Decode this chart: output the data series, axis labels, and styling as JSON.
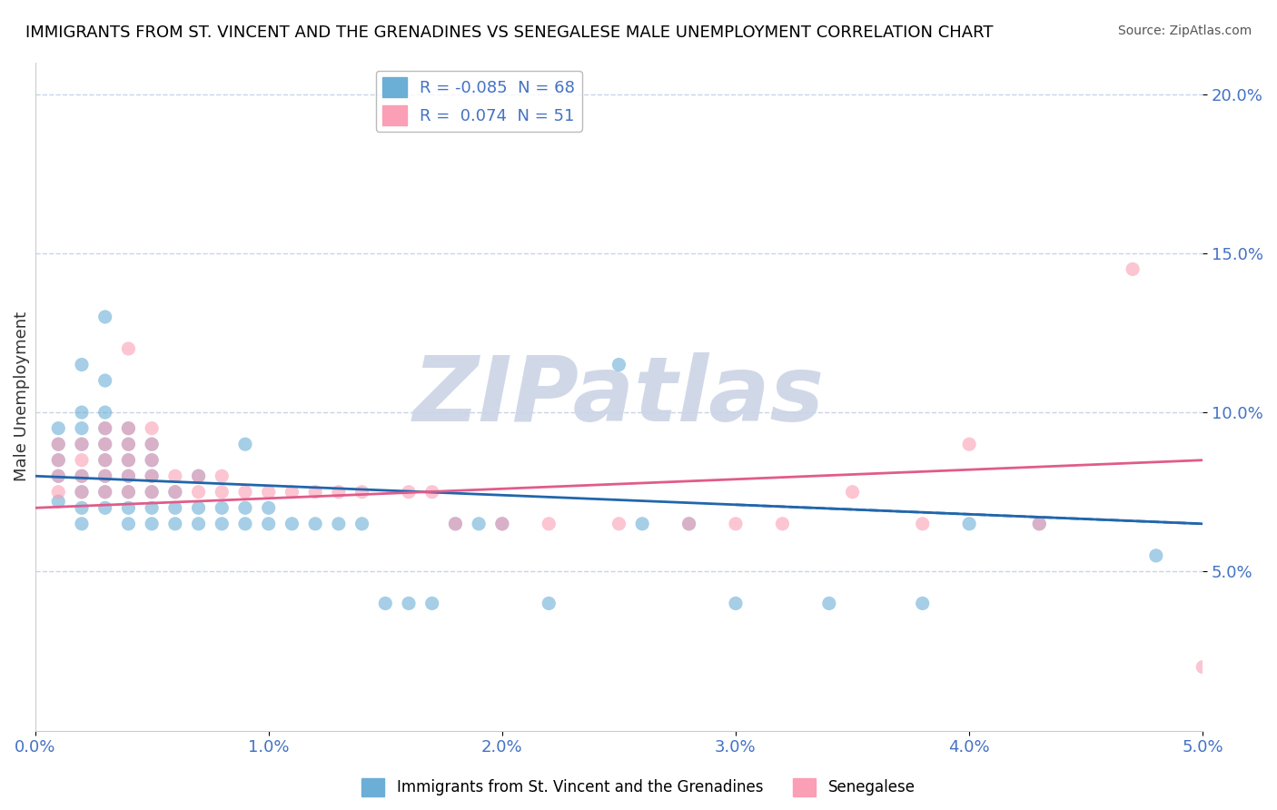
{
  "title": "IMMIGRANTS FROM ST. VINCENT AND THE GRENADINES VS SENEGALESE MALE UNEMPLOYMENT CORRELATION CHART",
  "source": "Source: ZipAtlas.com",
  "xlabel": "",
  "ylabel": "Male Unemployment",
  "x_min": 0.0,
  "x_max": 0.05,
  "y_min": 0.0,
  "y_max": 0.21,
  "y_ticks": [
    0.05,
    0.1,
    0.15,
    0.2
  ],
  "y_tick_labels": [
    "5.0%",
    "10.0%",
    "15.0%",
    "20.0%"
  ],
  "x_ticks": [
    0.0,
    0.01,
    0.02,
    0.03,
    0.04,
    0.05
  ],
  "x_tick_labels": [
    "0.0%",
    "1.0%",
    "2.0%",
    "3.0%",
    "4.0%",
    "5.0%"
  ],
  "blue_label": "Immigrants from St. Vincent and the Grenadines",
  "pink_label": "Senegalese",
  "blue_R": -0.085,
  "blue_N": 68,
  "pink_R": 0.074,
  "pink_N": 51,
  "blue_color": "#6baed6",
  "pink_color": "#fa9fb5",
  "blue_line_color": "#2166ac",
  "pink_line_color": "#e05c8a",
  "watermark": "ZIPatlas",
  "watermark_color": "#d0d8e8",
  "grid_color": "#c8d4e8",
  "blue_x": [
    0.001,
    0.001,
    0.001,
    0.001,
    0.001,
    0.002,
    0.002,
    0.002,
    0.002,
    0.002,
    0.002,
    0.002,
    0.002,
    0.003,
    0.003,
    0.003,
    0.003,
    0.003,
    0.003,
    0.003,
    0.003,
    0.003,
    0.004,
    0.004,
    0.004,
    0.004,
    0.004,
    0.004,
    0.004,
    0.005,
    0.005,
    0.005,
    0.005,
    0.005,
    0.005,
    0.006,
    0.006,
    0.006,
    0.007,
    0.007,
    0.007,
    0.008,
    0.008,
    0.009,
    0.009,
    0.009,
    0.01,
    0.01,
    0.011,
    0.012,
    0.013,
    0.014,
    0.015,
    0.016,
    0.017,
    0.018,
    0.019,
    0.02,
    0.022,
    0.025,
    0.026,
    0.028,
    0.03,
    0.034,
    0.038,
    0.04,
    0.043,
    0.048
  ],
  "blue_y": [
    0.072,
    0.08,
    0.085,
    0.09,
    0.095,
    0.065,
    0.07,
    0.075,
    0.08,
    0.09,
    0.095,
    0.1,
    0.115,
    0.07,
    0.075,
    0.08,
    0.085,
    0.09,
    0.095,
    0.1,
    0.11,
    0.13,
    0.065,
    0.07,
    0.075,
    0.08,
    0.085,
    0.09,
    0.095,
    0.065,
    0.07,
    0.075,
    0.08,
    0.085,
    0.09,
    0.065,
    0.07,
    0.075,
    0.065,
    0.07,
    0.08,
    0.065,
    0.07,
    0.065,
    0.07,
    0.09,
    0.065,
    0.07,
    0.065,
    0.065,
    0.065,
    0.065,
    0.04,
    0.04,
    0.04,
    0.065,
    0.065,
    0.065,
    0.04,
    0.115,
    0.065,
    0.065,
    0.04,
    0.04,
    0.04,
    0.065,
    0.065,
    0.055
  ],
  "pink_x": [
    0.001,
    0.001,
    0.001,
    0.001,
    0.002,
    0.002,
    0.002,
    0.002,
    0.003,
    0.003,
    0.003,
    0.003,
    0.003,
    0.004,
    0.004,
    0.004,
    0.004,
    0.004,
    0.004,
    0.005,
    0.005,
    0.005,
    0.005,
    0.005,
    0.006,
    0.006,
    0.007,
    0.007,
    0.008,
    0.008,
    0.009,
    0.01,
    0.011,
    0.012,
    0.013,
    0.014,
    0.016,
    0.017,
    0.018,
    0.02,
    0.022,
    0.025,
    0.028,
    0.03,
    0.032,
    0.035,
    0.038,
    0.04,
    0.043,
    0.047,
    0.05
  ],
  "pink_y": [
    0.075,
    0.08,
    0.085,
    0.09,
    0.075,
    0.08,
    0.085,
    0.09,
    0.075,
    0.08,
    0.085,
    0.09,
    0.095,
    0.075,
    0.08,
    0.085,
    0.09,
    0.095,
    0.12,
    0.075,
    0.08,
    0.085,
    0.09,
    0.095,
    0.075,
    0.08,
    0.075,
    0.08,
    0.075,
    0.08,
    0.075,
    0.075,
    0.075,
    0.075,
    0.075,
    0.075,
    0.075,
    0.075,
    0.065,
    0.065,
    0.065,
    0.065,
    0.065,
    0.065,
    0.065,
    0.075,
    0.065,
    0.09,
    0.065,
    0.145,
    0.02
  ],
  "blue_trend_x": [
    0.0,
    0.05
  ],
  "blue_trend_y": [
    0.08,
    0.065
  ],
  "pink_trend_x": [
    0.0,
    0.05
  ],
  "pink_trend_y": [
    0.07,
    0.085
  ]
}
